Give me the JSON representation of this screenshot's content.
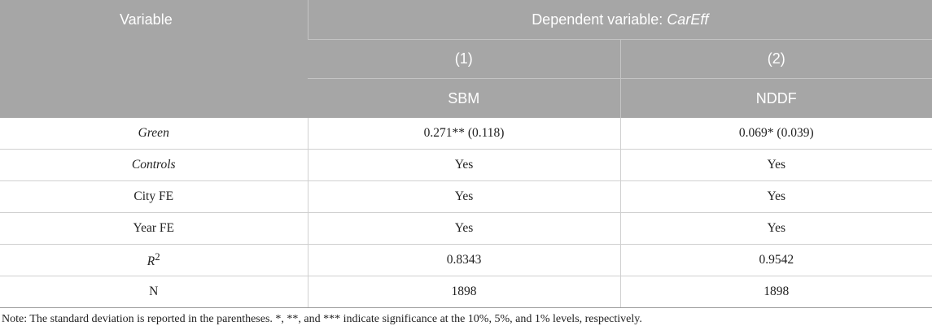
{
  "table": {
    "header": {
      "variable": "Variable",
      "dependent_prefix": "Dependent variable: ",
      "dependent_var": "CarEff",
      "columns": [
        {
          "number": "(1)",
          "method": "SBM"
        },
        {
          "number": "(2)",
          "method": "NDDF"
        }
      ]
    },
    "rows": [
      {
        "label": "Green",
        "values": [
          "0.271** (0.118)",
          "0.069* (0.039)"
        ]
      },
      {
        "label": "Controls",
        "values": [
          "Yes",
          "Yes"
        ]
      },
      {
        "label": "City FE",
        "values": [
          "Yes",
          "Yes"
        ]
      },
      {
        "label": "Year FE",
        "values": [
          "Yes",
          "Yes"
        ]
      },
      {
        "label": "R",
        "label_sup": "2",
        "values": [
          "0.8343",
          "0.9542"
        ]
      },
      {
        "label": "N",
        "values": [
          "1898",
          "1898"
        ]
      }
    ]
  },
  "note": "Note: The standard deviation is reported in the parentheses. *, **, and *** indicate significance at the 10%, 5%, and 1% levels, respectively."
}
